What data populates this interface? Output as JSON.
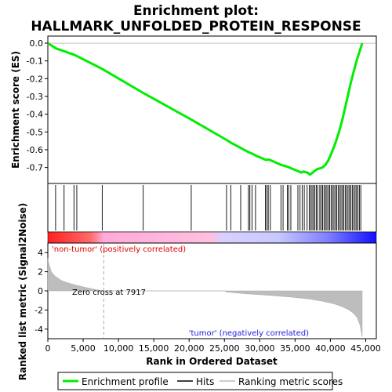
{
  "chart_data": {
    "type": "line",
    "title_line1": "Enrichment plot:",
    "title_line2": "HALLMARK_UNFOLDED_PROTEIN_RESPONSE",
    "top_panel": {
      "ylabel": "Enrichment score (ES)",
      "ylim": [
        -0.79,
        0.04
      ],
      "yticks": [
        "0.0",
        "-0.1",
        "-0.2",
        "-0.3",
        "-0.4",
        "-0.5",
        "-0.6",
        "-0.7"
      ],
      "ytick_values": [
        0.0,
        -0.1,
        -0.2,
        -0.3,
        -0.4,
        -0.5,
        -0.6,
        -0.7
      ],
      "series": [
        {
          "name": "Enrichment profile",
          "color": "#00ee00",
          "x": [
            0,
            1200,
            2300,
            3700,
            4100,
            7700,
            13500,
            20300,
            25300,
            25900,
            27300,
            28500,
            28900,
            29400,
            30900,
            31200,
            31600,
            33000,
            33400,
            34000,
            34300,
            35500,
            35800,
            36200,
            36800,
            37100,
            37300,
            37500,
            37800,
            38100,
            38500,
            38900,
            39300,
            39700,
            40100,
            40500,
            40900,
            41300,
            41700,
            42100,
            42500,
            42900,
            43300,
            43700,
            44100,
            44500
          ],
          "y": [
            0.0,
            -0.03,
            -0.045,
            -0.065,
            -0.072,
            -0.145,
            -0.28,
            -0.43,
            -0.545,
            -0.56,
            -0.59,
            -0.615,
            -0.622,
            -0.632,
            -0.658,
            -0.655,
            -0.66,
            -0.685,
            -0.69,
            -0.697,
            -0.702,
            -0.722,
            -0.728,
            -0.723,
            -0.73,
            -0.74,
            -0.735,
            -0.728,
            -0.718,
            -0.71,
            -0.705,
            -0.7,
            -0.685,
            -0.66,
            -0.625,
            -0.585,
            -0.54,
            -0.49,
            -0.43,
            -0.36,
            -0.29,
            -0.22,
            -0.16,
            -0.1,
            -0.05,
            0.0
          ]
        }
      ]
    },
    "hits": {
      "label": "Hits",
      "positions": [
        1100,
        2300,
        3700,
        4100,
        7700,
        13500,
        20300,
        25300,
        25900,
        27300,
        28400,
        28600,
        28900,
        29400,
        30800,
        31000,
        31200,
        31500,
        33000,
        33300,
        33900,
        34100,
        34400,
        35400,
        35700,
        36000,
        36300,
        36700,
        37000,
        37200,
        37400,
        37600,
        37800,
        38000,
        38200,
        38500,
        38700,
        38900,
        39100,
        39300,
        39500,
        39700,
        39900,
        40100,
        40300,
        40500,
        40700,
        40900,
        41100,
        41300,
        41500,
        41700,
        41900,
        42100,
        42300,
        42500,
        42700,
        42900,
        43100,
        43300,
        43500,
        43700,
        43900,
        44100,
        44300
      ]
    },
    "ranking_bar": {
      "zero_cross": 7917,
      "left_color": "#ff0000",
      "right_color": "#0000ff"
    },
    "bottom_panel": {
      "ylabel_line1": "Ranked list metric (Signal2Noise)",
      "ylim": [
        -5,
        5
      ],
      "yticks": [
        "4",
        "2",
        "0",
        "-2",
        "-4"
      ],
      "ytick_values": [
        4,
        2,
        0,
        -2,
        -4
      ],
      "metric_x": [
        0,
        200,
        500,
        1000,
        2000,
        3000,
        4000,
        5000,
        6000,
        7000,
        7917,
        10000,
        15000,
        20000,
        25000,
        25300,
        28000,
        31000,
        34000,
        37000,
        39000,
        40500,
        41500,
        42500,
        43200,
        43800,
        44200,
        44500
      ],
      "metric_y": [
        3.4,
        2.7,
        2.0,
        1.55,
        1.05,
        0.8,
        0.6,
        0.42,
        0.25,
        0.1,
        0.0,
        0.0,
        0.0,
        0.0,
        0.0,
        -0.12,
        -0.3,
        -0.45,
        -0.62,
        -0.85,
        -1.1,
        -1.35,
        -1.6,
        -1.95,
        -2.3,
        -2.8,
        -3.6,
        -4.8
      ],
      "annotation_left": "'non-tumor' (positively correlated)",
      "annotation_zero": "Zero cross at 7917",
      "annotation_right": "'tumor' (negatively correlated)"
    },
    "xaxis": {
      "xlabel": "Rank in Ordered Dataset",
      "xlim": [
        0,
        46500
      ],
      "xticks": [
        "0",
        "5,000",
        "10,000",
        "15,000",
        "20,000",
        "25,000",
        "30,000",
        "35,000",
        "40,000",
        "45,000"
      ],
      "xtick_values": [
        0,
        5000,
        10000,
        15000,
        20000,
        25000,
        30000,
        35000,
        40000,
        45000
      ]
    },
    "legend": {
      "items": [
        {
          "label": "Enrichment profile",
          "color": "#00ee00"
        },
        {
          "label": "Hits",
          "color": "#000000"
        },
        {
          "label": "Ranking metric scores",
          "color": "#bbbbbb"
        }
      ],
      "placement": "bottom"
    }
  }
}
